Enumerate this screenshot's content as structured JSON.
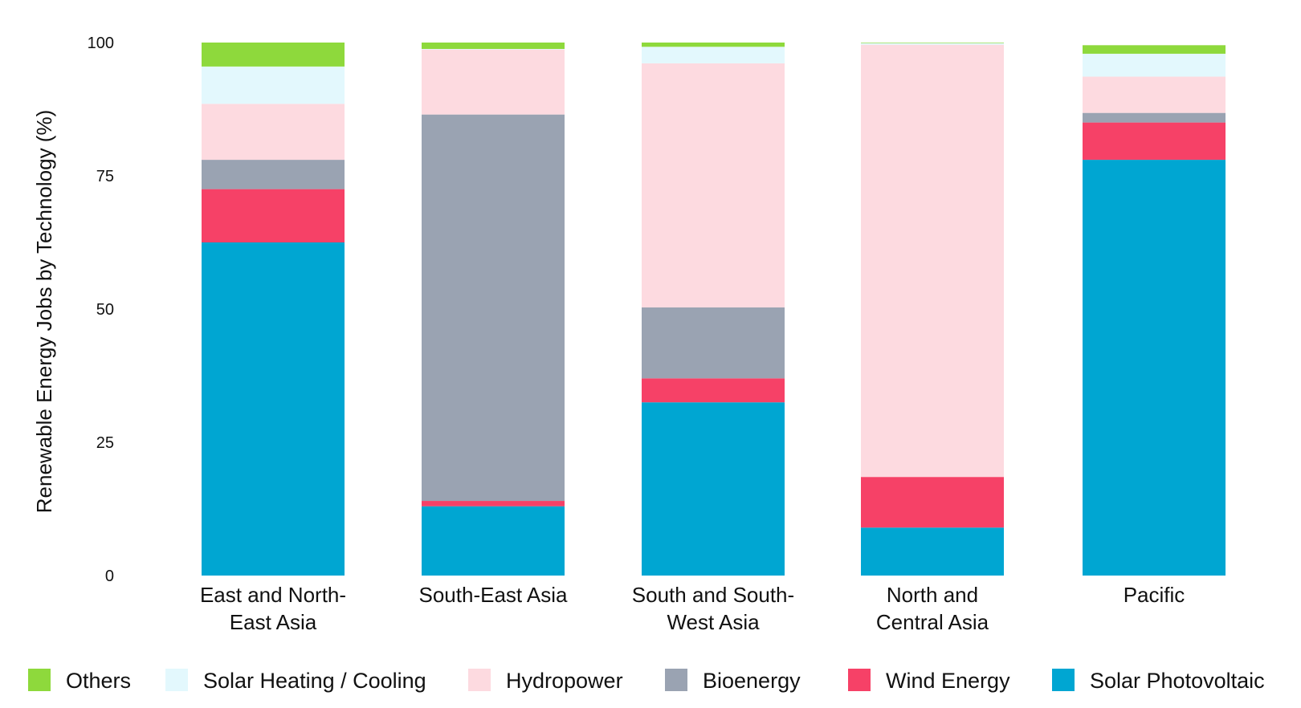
{
  "chart_data": {
    "type": "bar",
    "stacked": true,
    "ylabel": "Renewable Energy Jobs by Technology (%)",
    "xlabel": "",
    "ylim": [
      0,
      100
    ],
    "yticks": [
      0,
      25,
      50,
      75,
      100
    ],
    "grid": false,
    "legend_position": "bottom",
    "categories": [
      [
        "East and North-",
        "East Asia"
      ],
      [
        "South-East Asia"
      ],
      [
        "South and South-",
        "West Asia"
      ],
      [
        "North and",
        "Central Asia"
      ],
      [
        "Pacific"
      ]
    ],
    "series": [
      {
        "name": "Solar Photovoltaic",
        "color": "#00a6d2",
        "values": [
          62.5,
          13,
          32.5,
          9,
          78
        ]
      },
      {
        "name": "Wind Energy",
        "color": "#f64167",
        "values": [
          10,
          1,
          4.5,
          9.5,
          7
        ]
      },
      {
        "name": "Bioenergy",
        "color": "#9aa3b2",
        "values": [
          5.5,
          72.5,
          13.3,
          0,
          1.8
        ]
      },
      {
        "name": "Hydropower",
        "color": "#fddae0",
        "values": [
          10.5,
          12.2,
          45.8,
          81.1,
          6.8
        ]
      },
      {
        "name": "Solar Heating / Cooling",
        "color": "#e3f8fd",
        "values": [
          7,
          0.1,
          3.1,
          0.3,
          4.3
        ]
      },
      {
        "name": "Others",
        "color": "#8ed93c",
        "values": [
          4.5,
          1.2,
          0.8,
          0.1,
          1.6
        ]
      }
    ],
    "legend_order": [
      "Others",
      "Solar Heating / Cooling",
      "Hydropower",
      "Bioenergy",
      "Wind Energy",
      "Solar Photovoltaic"
    ]
  }
}
